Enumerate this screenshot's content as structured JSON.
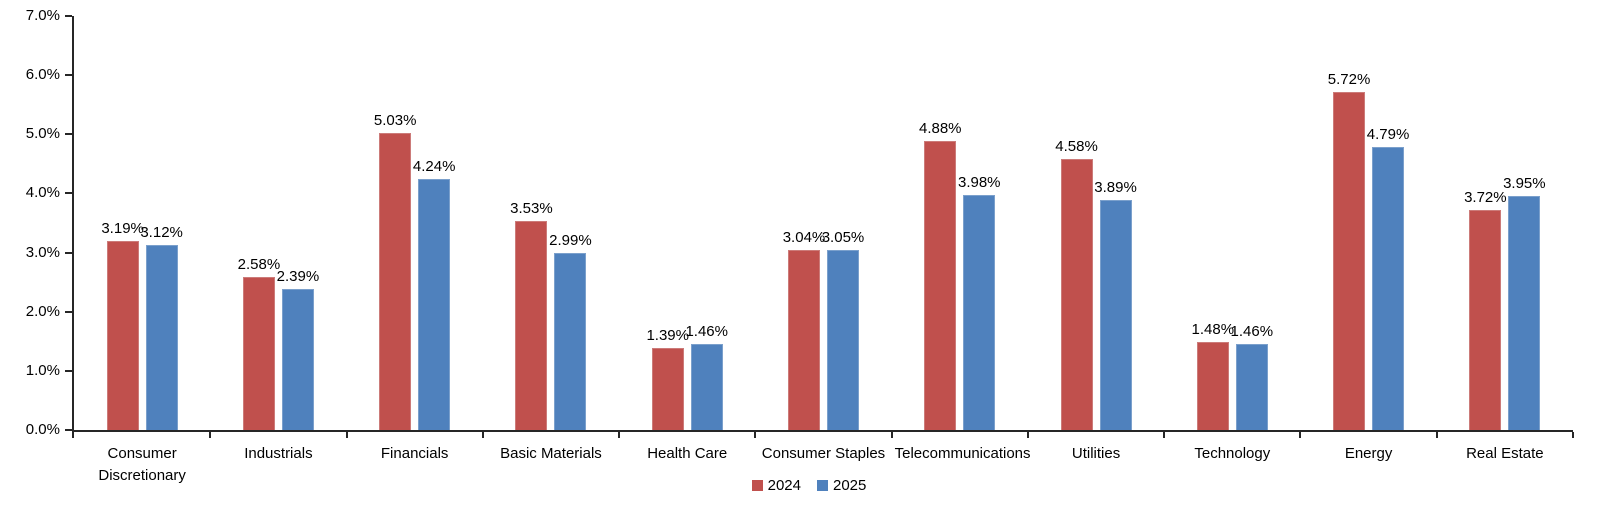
{
  "chart_data": {
    "type": "bar",
    "title": "",
    "xlabel": "",
    "ylabel": "",
    "categories": [
      "Consumer Discretionary",
      "Industrials",
      "Financials",
      "Basic Materials",
      "Health Care",
      "Consumer Staples",
      "Telecommunications",
      "Utilities",
      "Technology",
      "Energy",
      "Real Estate"
    ],
    "series": [
      {
        "name": "2024",
        "color": "#C0504D",
        "values": [
          3.19,
          2.58,
          5.03,
          3.53,
          1.39,
          3.04,
          4.88,
          4.58,
          1.48,
          5.72,
          3.72
        ],
        "data_labels": [
          "3.19%",
          "2.58%",
          "5.03%",
          "3.53%",
          "1.39%",
          "3.04%",
          "4.88%",
          "4.58%",
          "1.48%",
          "5.72%",
          "3.72%"
        ]
      },
      {
        "name": "2025",
        "color": "#4F81BD",
        "values": [
          3.12,
          2.39,
          4.24,
          2.99,
          1.46,
          3.05,
          3.98,
          3.89,
          1.46,
          4.79,
          3.95
        ],
        "data_labels": [
          "3.12%",
          "2.39%",
          "4.24%",
          "2.99%",
          "1.46%",
          "3.05%",
          "3.98%",
          "3.89%",
          "1.46%",
          "4.79%",
          "3.95%"
        ]
      }
    ],
    "ylim": [
      0,
      7
    ],
    "y_tick_labels": [
      "0.0%",
      "1.0%",
      "2.0%",
      "3.0%",
      "4.0%",
      "5.0%",
      "6.0%",
      "7.0%"
    ],
    "grid": false,
    "legend_position": "bottom",
    "axis_color": "#262626",
    "background_color": "#ffffff"
  }
}
